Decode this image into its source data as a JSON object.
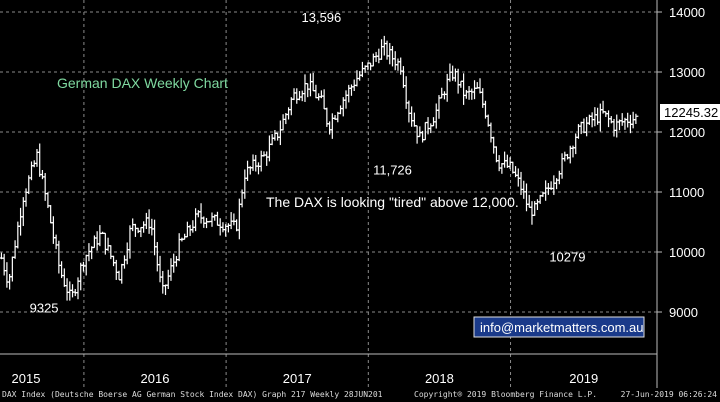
{
  "chart_data": {
    "type": "ohlc",
    "title": "German DAX Weekly Chart",
    "annotation": "The DAX is looking \"tired\" above 12,000.",
    "contact": "info@marketmatters.com.au",
    "last_price_label": "12245.32",
    "ylim": [
      8300,
      14200
    ],
    "yticks": [
      9000,
      10000,
      11000,
      12000,
      13000,
      14000
    ],
    "ytick_labels": [
      "9000",
      "10000",
      "11000",
      "12000",
      "13000",
      "14000"
    ],
    "xlim": [
      2014.96,
      2019.58
    ],
    "year_labels": [
      {
        "label": "2015",
        "x": 2015.0
      },
      {
        "label": "2016",
        "x": 2015.55
      },
      {
        "label": "2017",
        "x": 2016.55
      },
      {
        "label": "2018",
        "x": 2017.55
      },
      {
        "label": "2019",
        "x": 2018.55
      }
    ],
    "price_labels": [
      {
        "text": "13,596",
        "x": 2017.22,
        "y": 13596
      },
      {
        "text": "11,726",
        "x": 2017.72,
        "y": 11726
      },
      {
        "text": "9325",
        "x": 2015.27,
        "y": 9325
      },
      {
        "text": "10279",
        "x": 2018.95,
        "y": 10279
      }
    ],
    "anchors": [
      {
        "x": 2014.97,
        "y": 9900
      },
      {
        "x": 2015.02,
        "y": 9500
      },
      {
        "x": 2015.12,
        "y": 10900
      },
      {
        "x": 2015.22,
        "y": 11600
      },
      {
        "x": 2015.3,
        "y": 10700
      },
      {
        "x": 2015.38,
        "y": 9700
      },
      {
        "x": 2015.46,
        "y": 9200
      },
      {
        "x": 2015.55,
        "y": 9900
      },
      {
        "x": 2015.67,
        "y": 10300
      },
      {
        "x": 2015.8,
        "y": 9600
      },
      {
        "x": 2015.88,
        "y": 10400
      },
      {
        "x": 2016.02,
        "y": 10500
      },
      {
        "x": 2016.1,
        "y": 9300
      },
      {
        "x": 2016.22,
        "y": 10100
      },
      {
        "x": 2016.35,
        "y": 10600
      },
      {
        "x": 2016.5,
        "y": 10500
      },
      {
        "x": 2016.62,
        "y": 10400
      },
      {
        "x": 2016.68,
        "y": 11300
      },
      {
        "x": 2016.82,
        "y": 11600
      },
      {
        "x": 2016.92,
        "y": 12000
      },
      {
        "x": 2017.02,
        "y": 12600
      },
      {
        "x": 2017.12,
        "y": 12800
      },
      {
        "x": 2017.22,
        "y": 12500
      },
      {
        "x": 2017.27,
        "y": 12100
      },
      {
        "x": 2017.36,
        "y": 12500
      },
      {
        "x": 2017.47,
        "y": 12900
      },
      {
        "x": 2017.55,
        "y": 13100
      },
      {
        "x": 2017.65,
        "y": 13400
      },
      {
        "x": 2017.78,
        "y": 13100
      },
      {
        "x": 2017.83,
        "y": 12400
      },
      {
        "x": 2017.91,
        "y": 11900
      },
      {
        "x": 2018.02,
        "y": 12300
      },
      {
        "x": 2018.1,
        "y": 12800
      },
      {
        "x": 2018.15,
        "y": 13000
      },
      {
        "x": 2018.23,
        "y": 12600
      },
      {
        "x": 2018.32,
        "y": 12700
      },
      {
        "x": 2018.38,
        "y": 12300
      },
      {
        "x": 2018.46,
        "y": 11500
      },
      {
        "x": 2018.55,
        "y": 11400
      },
      {
        "x": 2018.62,
        "y": 11100
      },
      {
        "x": 2018.68,
        "y": 10700
      },
      {
        "x": 2018.72,
        "y": 10700
      },
      {
        "x": 2018.8,
        "y": 11000
      },
      {
        "x": 2018.92,
        "y": 11500
      },
      {
        "x": 2019.02,
        "y": 12000
      },
      {
        "x": 2019.12,
        "y": 12200
      },
      {
        "x": 2019.2,
        "y": 12300
      },
      {
        "x": 2019.28,
        "y": 12100
      },
      {
        "x": 2019.36,
        "y": 12200
      },
      {
        "x": 2019.45,
        "y": 12245
      }
    ],
    "grid": true
  },
  "footer": {
    "left": "DAX Index (Deutsche Boerse AG German Stock Index DAX) Graph 217  Weekly 28JUN201",
    "mid": "Copyright® 2019 Bloomberg Finance L.P.",
    "right": "27-Jun-2019 06:26:24"
  }
}
